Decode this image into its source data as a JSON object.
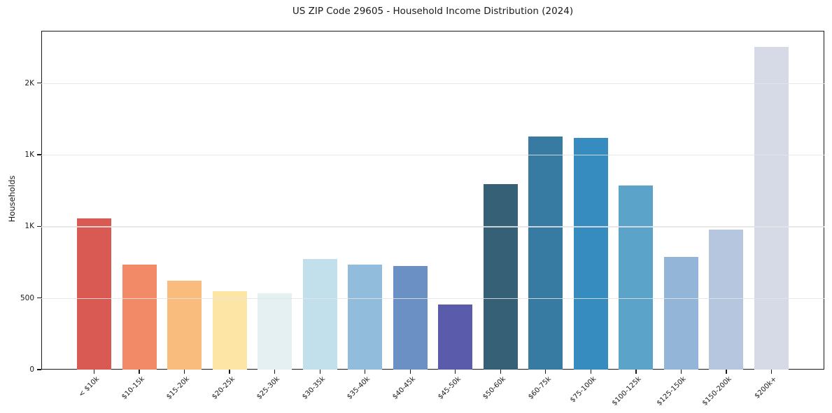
{
  "chart_data": {
    "type": "bar",
    "title": "US ZIP Code 29605 - Household Income Distribution (2024)",
    "ylabel": "Households",
    "categories": [
      "< $10k",
      "$10-15k",
      "$15-20k",
      "$20-25k",
      "$25-30k",
      "$30-35k",
      "$35-40k",
      "$40-45k",
      "$45-50k",
      "$50-60k",
      "$60-75k",
      "$75-100k",
      "$100-125k",
      "$125-150k",
      "$150-200k",
      "$200k+"
    ],
    "values": [
      1055,
      735,
      620,
      545,
      535,
      770,
      735,
      725,
      455,
      1295,
      1625,
      1618,
      1285,
      785,
      975,
      2255
    ],
    "bar_colors": [
      "#d95a53",
      "#f28a68",
      "#fabc7c",
      "#fde5a6",
      "#e4f0f2",
      "#c1e0eb",
      "#92bcdb",
      "#6b90c4",
      "#5a5cab",
      "#356076",
      "#377ba3",
      "#368cbe",
      "#5ba3c9",
      "#92b5d8",
      "#b6c6de",
      "#d6d9e6"
    ],
    "ylim": [
      0,
      2365
    ],
    "yticks": [
      {
        "value": 0,
        "label": "0"
      },
      {
        "value": 500,
        "label": "500"
      },
      {
        "value": 1000,
        "label": "1K"
      },
      {
        "value": 1500,
        "label": "1K"
      },
      {
        "value": 2000,
        "label": "2K"
      }
    ],
    "gridlines": [
      500,
      1000,
      1500,
      2000
    ],
    "grid": "horizontal, drawn over bars",
    "legend": "none",
    "grid_color": "rgba(228,228,228,0.85)",
    "spine_color": "#1a1a1a",
    "text_color": "#1a1a1a",
    "background": "#ffffff"
  }
}
